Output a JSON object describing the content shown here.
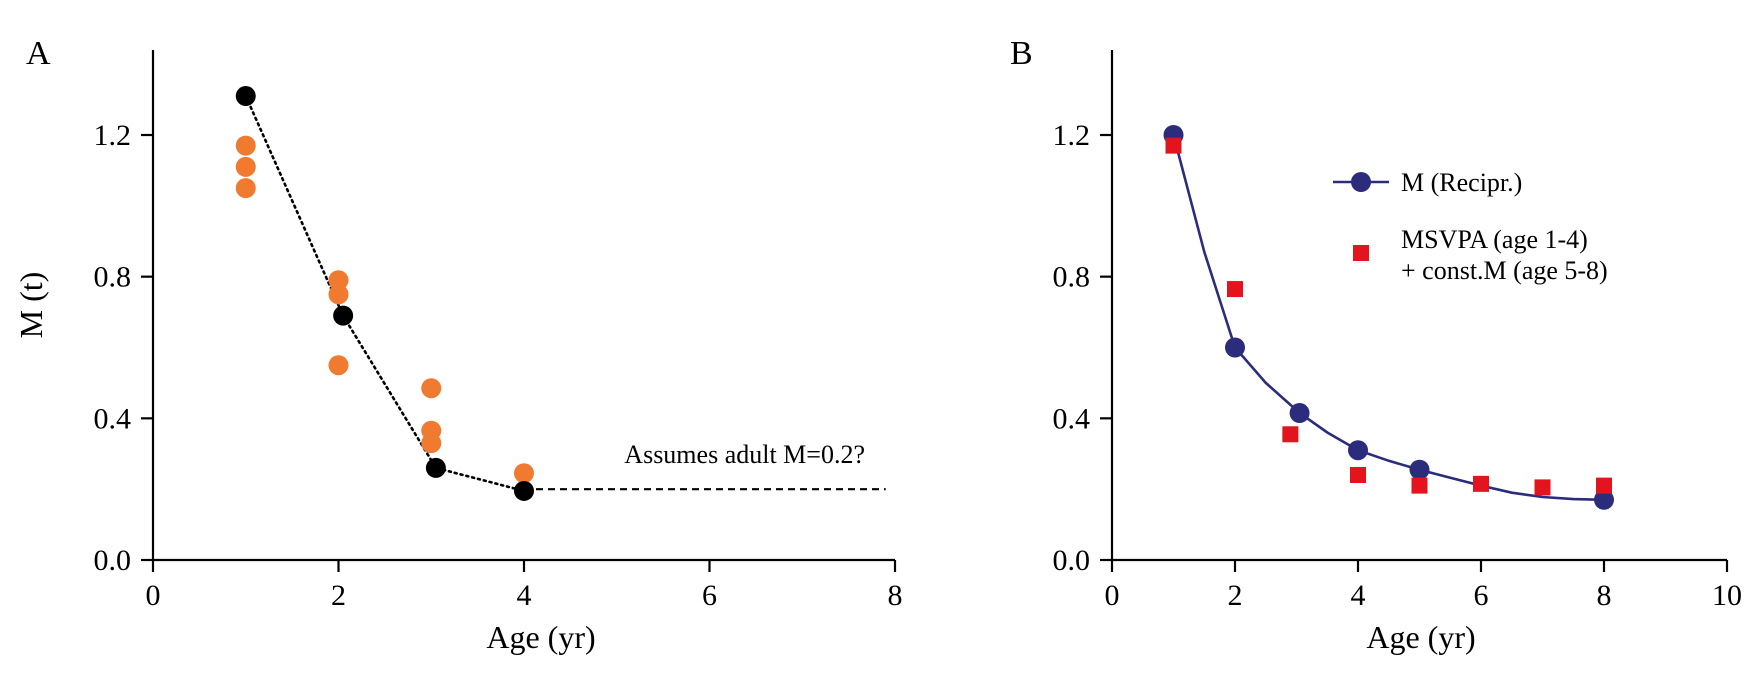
{
  "chart_data": [
    {
      "panel": "A",
      "type": "scatter",
      "xlabel": "Age (yr)",
      "ylabel": "M (t)",
      "xlim": [
        0,
        8
      ],
      "ylim": [
        0,
        1.44
      ],
      "xticks": [
        "0",
        "2",
        "4",
        "6",
        "8"
      ],
      "yticks": [
        "0.0",
        "0.4",
        "0.8",
        "1.2"
      ],
      "xtick_values": [
        0,
        2,
        4,
        6,
        8
      ],
      "ytick_values": [
        0.0,
        0.4,
        0.8,
        1.2
      ],
      "grid": false,
      "annotation": "Assumes adult M=0.2?",
      "colors": {
        "orange": "#f07a30",
        "black": "#000000"
      },
      "series": [
        {
          "marker": "circle",
          "color": "#f07a30",
          "points": [
            {
              "x": 1.0,
              "y": 1.17
            },
            {
              "x": 1.0,
              "y": 1.11
            },
            {
              "x": 1.0,
              "y": 1.05
            },
            {
              "x": 2.0,
              "y": 0.79
            },
            {
              "x": 2.0,
              "y": 0.75
            },
            {
              "x": 2.0,
              "y": 0.55
            },
            {
              "x": 3.0,
              "y": 0.485
            },
            {
              "x": 3.0,
              "y": 0.365
            },
            {
              "x": 3.0,
              "y": 0.33
            },
            {
              "x": 4.0,
              "y": 0.245
            }
          ]
        },
        {
          "marker": "circle",
          "color": "#000000",
          "line": "dotted",
          "points": [
            {
              "x": 1.0,
              "y": 1.31
            },
            {
              "x": 2.05,
              "y": 0.69
            },
            {
              "x": 3.05,
              "y": 0.26
            },
            {
              "x": 4.0,
              "y": 0.195
            }
          ]
        },
        {
          "line": "dashed",
          "color": "#000000",
          "points": [
            {
              "x": 4.0,
              "y": 0.2
            },
            {
              "x": 7.9,
              "y": 0.2
            }
          ]
        }
      ]
    },
    {
      "panel": "B",
      "type": "line",
      "xlabel": "Age (yr)",
      "ylabel": "",
      "xlim": [
        0,
        10
      ],
      "ylim": [
        0,
        1.44
      ],
      "xticks": [
        "0",
        "2",
        "4",
        "6",
        "8",
        "10"
      ],
      "yticks": [
        "0.0",
        "0.4",
        "0.8",
        "1.2"
      ],
      "xtick_values": [
        0,
        2,
        4,
        6,
        8,
        10
      ],
      "ytick_values": [
        0.0,
        0.4,
        0.8,
        1.2
      ],
      "grid": false,
      "legend_position": "top-right",
      "colors": {
        "navy": "#2b2c7c",
        "red": "#e3141e"
      },
      "series": [
        {
          "name": "M (Recipr.)",
          "marker": "circle",
          "color": "#2b2c7c",
          "points": [
            {
              "x": 1.0,
              "y": 1.2
            },
            {
              "x": 2.0,
              "y": 0.6
            },
            {
              "x": 3.05,
              "y": 0.415
            },
            {
              "x": 4.0,
              "y": 0.31
            },
            {
              "x": 5.0,
              "y": 0.255
            },
            {
              "x": 8.0,
              "y": 0.17
            }
          ],
          "curve": [
            {
              "x": 1.0,
              "y": 1.2
            },
            {
              "x": 1.5,
              "y": 0.87
            },
            {
              "x": 2.0,
              "y": 0.6
            },
            {
              "x": 2.5,
              "y": 0.5
            },
            {
              "x": 3.05,
              "y": 0.415
            },
            {
              "x": 3.5,
              "y": 0.36
            },
            {
              "x": 4.0,
              "y": 0.31
            },
            {
              "x": 4.5,
              "y": 0.28
            },
            {
              "x": 5.0,
              "y": 0.255
            },
            {
              "x": 5.5,
              "y": 0.232
            },
            {
              "x": 6.0,
              "y": 0.21
            },
            {
              "x": 6.5,
              "y": 0.19
            },
            {
              "x": 7.0,
              "y": 0.178
            },
            {
              "x": 7.5,
              "y": 0.172
            },
            {
              "x": 8.0,
              "y": 0.17
            }
          ]
        },
        {
          "name": "MSVPA (age 1-4)",
          "name_line2": "+ const.M (age 5-8)",
          "marker": "square",
          "color": "#e3141e",
          "points": [
            {
              "x": 1.0,
              "y": 1.17
            },
            {
              "x": 2.0,
              "y": 0.765
            },
            {
              "x": 2.9,
              "y": 0.355
            },
            {
              "x": 4.0,
              "y": 0.24
            },
            {
              "x": 5.0,
              "y": 0.21
            },
            {
              "x": 6.0,
              "y": 0.215
            },
            {
              "x": 7.0,
              "y": 0.205
            },
            {
              "x": 8.0,
              "y": 0.21
            }
          ]
        }
      ]
    }
  ]
}
